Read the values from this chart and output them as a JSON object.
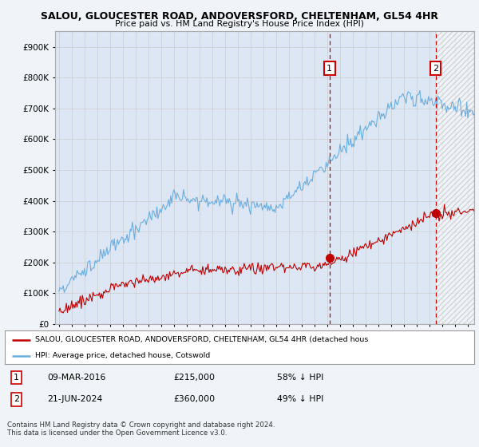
{
  "title": "SALOU, GLOUCESTER ROAD, ANDOVERSFORD, CHELTENHAM, GL54 4HR",
  "subtitle": "Price paid vs. HM Land Registry's House Price Index (HPI)",
  "ylim": [
    0,
    950000
  ],
  "yticks": [
    0,
    100000,
    200000,
    300000,
    400000,
    500000,
    600000,
    700000,
    800000,
    900000
  ],
  "fig_bg_color": "#f0f4f8",
  "plot_bg_color": "#dce6f5",
  "legend_label_red": "SALOU, GLOUCESTER ROAD, ANDOVERSFORD, CHELTENHAM, GL54 4HR (detached hous",
  "legend_label_blue": "HPI: Average price, detached house, Cotswold",
  "transaction1_date": "09-MAR-2016",
  "transaction1_price": 215000,
  "transaction1_pct": "58% ↓ HPI",
  "transaction2_date": "21-JUN-2024",
  "transaction2_price": 360000,
  "transaction2_pct": "49% ↓ HPI",
  "footer": "Contains HM Land Registry data © Crown copyright and database right 2024.\nThis data is licensed under the Open Government Licence v3.0.",
  "hpi_color": "#6aaee0",
  "price_color": "#c00000",
  "vline_color": "#cc0000",
  "marker1_x": 2016.18,
  "marker1_y": 215000,
  "marker2_x": 2024.47,
  "marker2_y": 360000,
  "shade_start": 2016.18,
  "shade_end": 2024.47,
  "hatch_start": 2024.47,
  "hatch_end": 2027.5,
  "xlim_left": 1994.7,
  "xlim_right": 2027.5
}
